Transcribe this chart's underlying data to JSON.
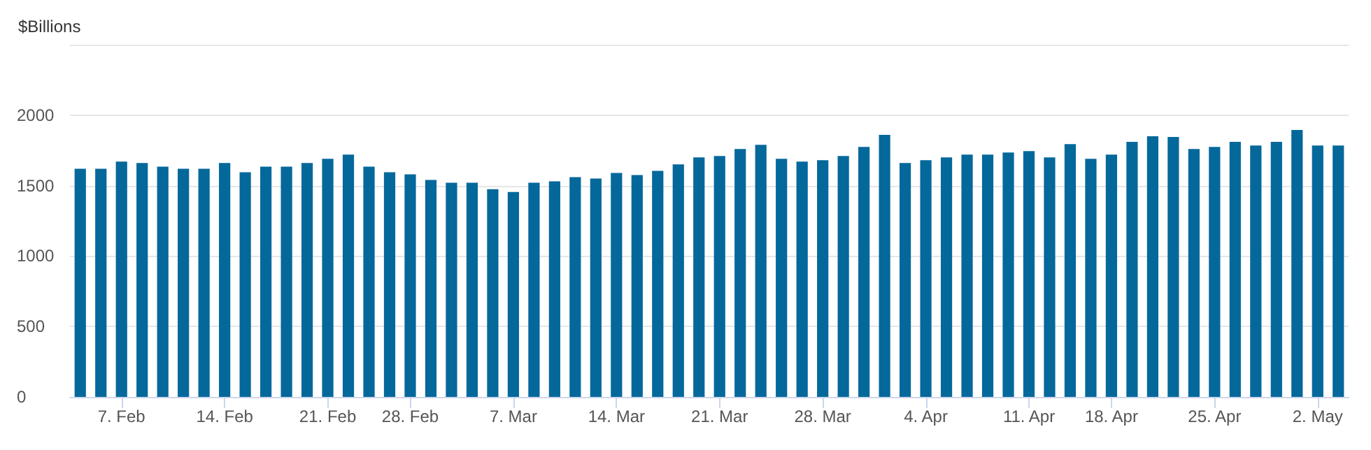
{
  "chart_data": {
    "type": "bar",
    "ylabel": "$Billions",
    "categories": [
      null,
      null,
      "7. Feb",
      null,
      null,
      null,
      null,
      "14. Feb",
      null,
      null,
      null,
      null,
      "21. Feb",
      null,
      null,
      null,
      "28. Feb",
      null,
      null,
      null,
      null,
      "7. Mar",
      null,
      null,
      null,
      null,
      "14. Mar",
      null,
      null,
      null,
      null,
      "21. Mar",
      null,
      null,
      null,
      null,
      "28. Mar",
      null,
      null,
      null,
      null,
      "4. Apr",
      null,
      null,
      null,
      null,
      "11. Apr",
      null,
      null,
      null,
      "18. Apr",
      null,
      null,
      null,
      null,
      "25. Apr",
      null,
      null,
      null,
      null,
      "2. May",
      null
    ],
    "values": [
      1620,
      1620,
      1670,
      1660,
      1635,
      1620,
      1620,
      1660,
      1595,
      1635,
      1635,
      1660,
      1690,
      1720,
      1635,
      1595,
      1580,
      1540,
      1520,
      1520,
      1475,
      1455,
      1520,
      1530,
      1560,
      1550,
      1590,
      1575,
      1605,
      1650,
      1700,
      1710,
      1760,
      1790,
      1690,
      1670,
      1680,
      1710,
      1775,
      1860,
      1660,
      1680,
      1700,
      1720,
      1720,
      1735,
      1745,
      1700,
      1795,
      1690,
      1720,
      1810,
      1850,
      1845,
      1760,
      1775,
      1810,
      1785,
      1810,
      1895,
      1785,
      1785
    ],
    "color": "#05689b",
    "ylim": [
      0,
      2500
    ],
    "yticks": [
      0,
      500,
      1000,
      1500,
      2000,
      {
        "value": 2500,
        "label": null
      }
    ],
    "grid": "y"
  }
}
